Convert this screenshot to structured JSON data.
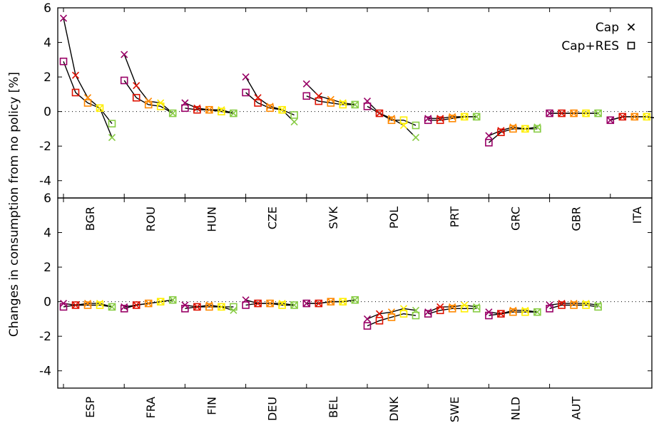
{
  "chart_data": {
    "type": "scatter",
    "ylabel": "Changes in consumption from no policy [%]",
    "legend": {
      "position": "top-right",
      "entries": [
        {
          "name": "Cap",
          "marker": "cross"
        },
        {
          "name": "Cap+RES",
          "marker": "square"
        }
      ]
    },
    "step_colors": [
      "#990066",
      "#dd1100",
      "#ff8800",
      "#ffee00",
      "#88cc44"
    ],
    "line_color": "#000000",
    "zero_line": "dotted",
    "panels": [
      {
        "ylim": [
          -5,
          6
        ],
        "yticks": [
          -4,
          -2,
          0,
          2,
          4,
          6
        ],
        "groups": [
          {
            "country": "BGR",
            "cap": [
              5.4,
              2.1,
              0.8,
              0.2,
              -1.5
            ],
            "cap_res": [
              2.9,
              1.1,
              0.5,
              0.2,
              -0.7
            ]
          },
          {
            "country": "ROU",
            "cap": [
              3.3,
              1.5,
              0.6,
              0.5,
              -0.1
            ],
            "cap_res": [
              1.8,
              0.8,
              0.4,
              0.3,
              -0.1
            ]
          },
          {
            "country": "HUN",
            "cap": [
              0.5,
              0.2,
              0.1,
              0.1,
              -0.1
            ],
            "cap_res": [
              0.2,
              0.1,
              0.1,
              0.0,
              -0.1
            ]
          },
          {
            "country": "CZE",
            "cap": [
              2.0,
              0.8,
              0.3,
              0.1,
              -0.6
            ],
            "cap_res": [
              1.1,
              0.5,
              0.2,
              0.1,
              -0.2
            ]
          },
          {
            "country": "SVK",
            "cap": [
              1.6,
              0.9,
              0.7,
              0.5,
              0.4
            ],
            "cap_res": [
              0.9,
              0.6,
              0.5,
              0.4,
              0.4
            ]
          },
          {
            "country": "POL",
            "cap": [
              0.6,
              -0.1,
              -0.4,
              -0.8,
              -1.5
            ],
            "cap_res": [
              0.3,
              -0.1,
              -0.5,
              -0.5,
              -0.8
            ]
          },
          {
            "country": "PRT",
            "cap": [
              -0.4,
              -0.4,
              -0.3,
              -0.3,
              -0.3
            ],
            "cap_res": [
              -0.5,
              -0.5,
              -0.4,
              -0.3,
              -0.3
            ]
          },
          {
            "country": "GRC",
            "cap": [
              -1.4,
              -1.1,
              -0.9,
              -1.0,
              -0.9
            ],
            "cap_res": [
              -1.8,
              -1.2,
              -1.0,
              -1.0,
              -1.0
            ]
          },
          {
            "country": "GBR",
            "cap": [
              -0.1,
              -0.1,
              -0.1,
              -0.1,
              -0.1
            ],
            "cap_res": [
              -0.1,
              -0.1,
              -0.1,
              -0.1,
              -0.1
            ]
          },
          {
            "country": "ITA",
            "cap": [
              -0.5,
              -0.3,
              -0.3,
              -0.3,
              -0.4
            ],
            "cap_res": [
              -0.5,
              -0.3,
              -0.3,
              -0.3,
              -0.4
            ]
          }
        ]
      },
      {
        "ylim": [
          -5,
          6
        ],
        "yticks": [
          -4,
          -2,
          0,
          2,
          4,
          6
        ],
        "groups": [
          {
            "country": "ESP",
            "cap": [
              -0.1,
              -0.2,
              -0.1,
              -0.1,
              -0.3
            ],
            "cap_res": [
              -0.3,
              -0.2,
              -0.2,
              -0.2,
              -0.3
            ]
          },
          {
            "country": "FRA",
            "cap": [
              -0.3,
              -0.2,
              -0.1,
              0.0,
              0.1
            ],
            "cap_res": [
              -0.4,
              -0.2,
              -0.1,
              0.0,
              0.1
            ]
          },
          {
            "country": "FIN",
            "cap": [
              -0.2,
              -0.3,
              -0.2,
              -0.3,
              -0.5
            ],
            "cap_res": [
              -0.4,
              -0.3,
              -0.3,
              -0.3,
              -0.3
            ]
          },
          {
            "country": "DEU",
            "cap": [
              0.1,
              -0.1,
              -0.1,
              -0.1,
              -0.2
            ],
            "cap_res": [
              -0.2,
              -0.1,
              -0.1,
              -0.2,
              -0.2
            ]
          },
          {
            "country": "BEL",
            "cap": [
              -0.1,
              -0.1,
              0.0,
              0.0,
              0.1
            ],
            "cap_res": [
              -0.1,
              -0.1,
              0.0,
              0.0,
              0.1
            ]
          },
          {
            "country": "DNK",
            "cap": [
              -1.0,
              -0.7,
              -0.6,
              -0.4,
              -0.5
            ],
            "cap_res": [
              -1.4,
              -1.1,
              -0.9,
              -0.7,
              -0.8
            ]
          },
          {
            "country": "SWE",
            "cap": [
              -0.6,
              -0.3,
              -0.3,
              -0.2,
              -0.3
            ],
            "cap_res": [
              -0.7,
              -0.5,
              -0.4,
              -0.4,
              -0.4
            ]
          },
          {
            "country": "NLD",
            "cap": [
              -0.6,
              -0.7,
              -0.5,
              -0.5,
              -0.6
            ],
            "cap_res": [
              -0.8,
              -0.7,
              -0.6,
              -0.6,
              -0.6
            ]
          },
          {
            "country": "AUT",
            "cap": [
              -0.2,
              -0.1,
              -0.1,
              -0.1,
              -0.2
            ],
            "cap_res": [
              -0.4,
              -0.2,
              -0.2,
              -0.2,
              -0.3
            ]
          }
        ]
      }
    ]
  }
}
